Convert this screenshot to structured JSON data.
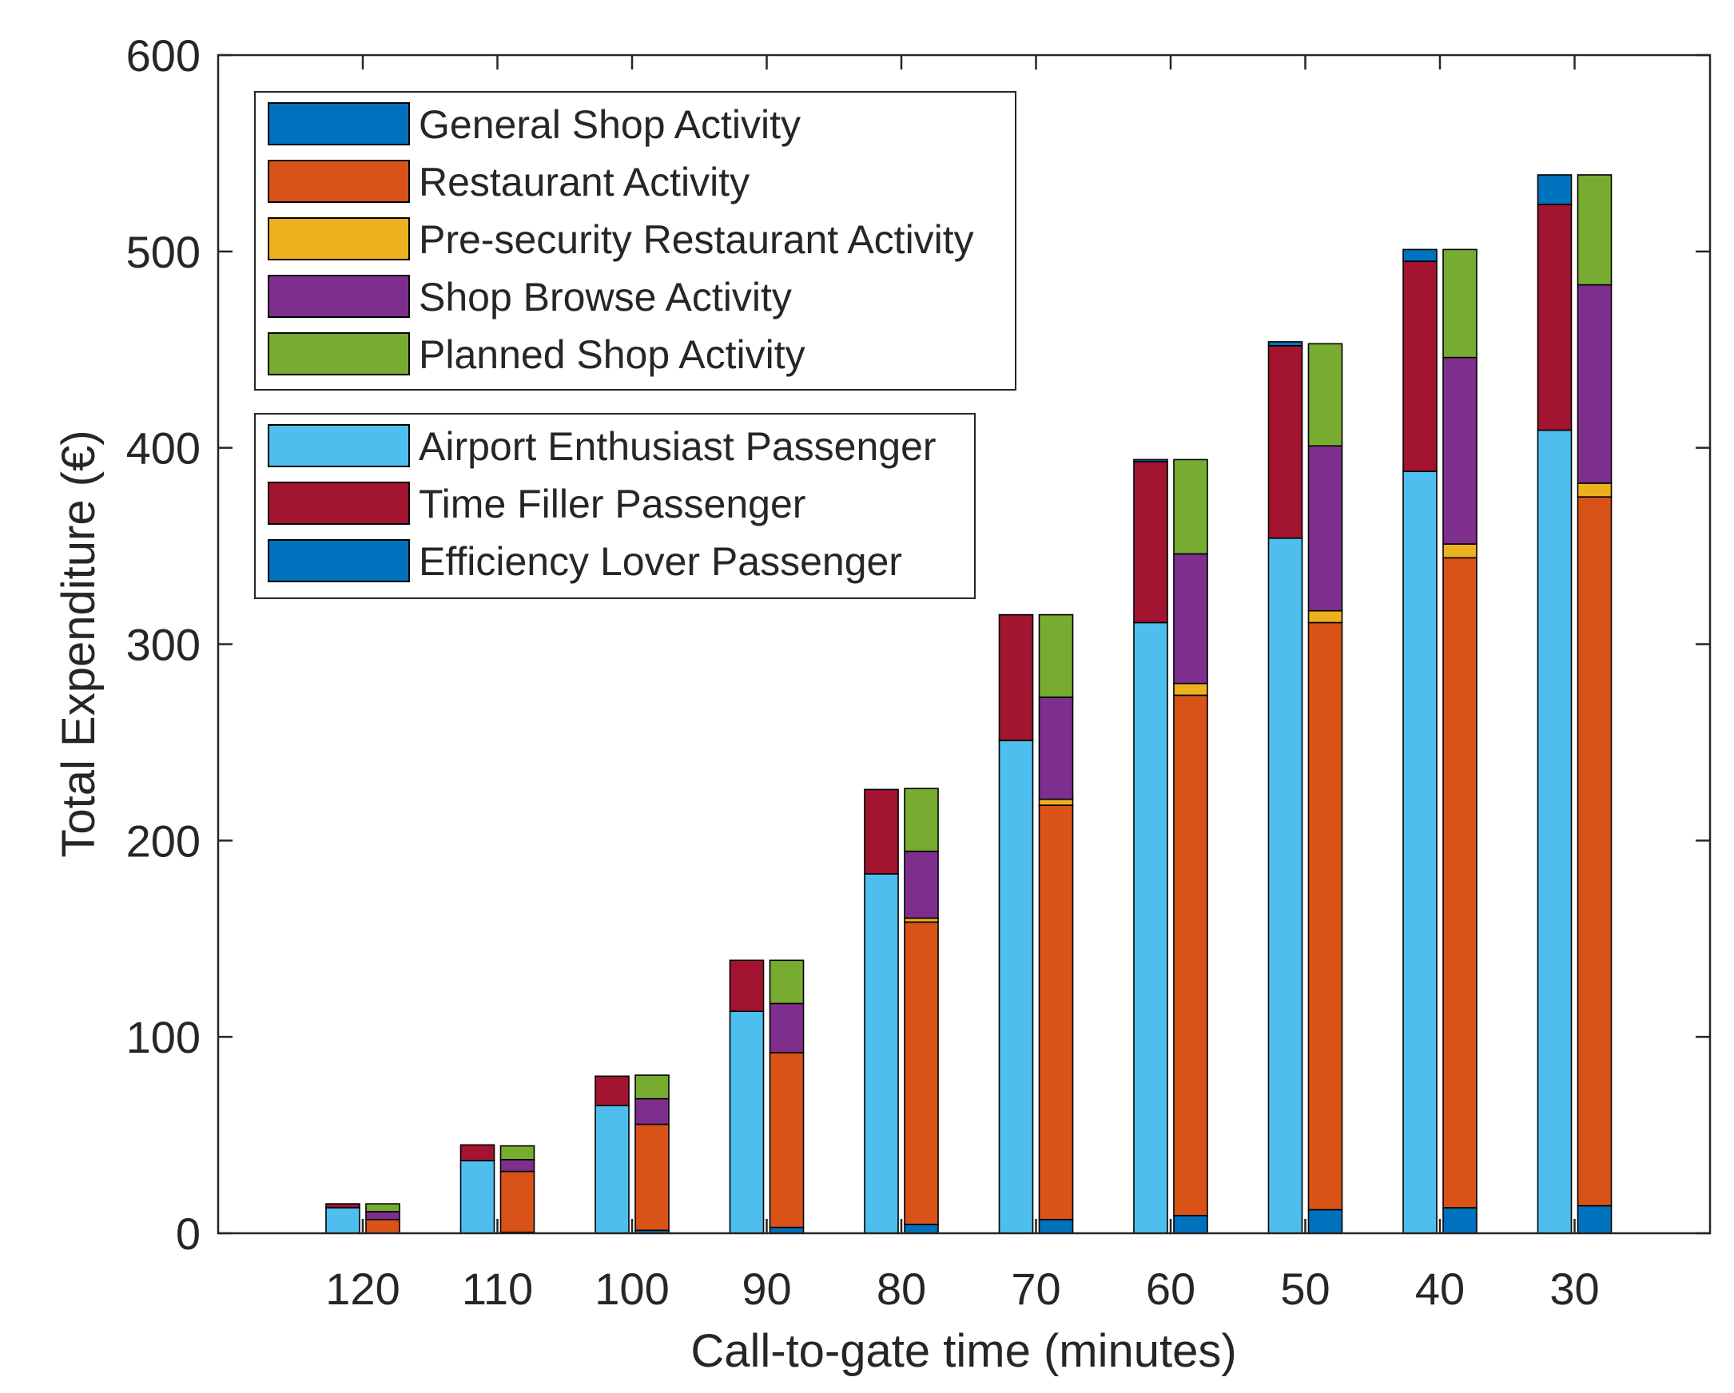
{
  "chart_data": {
    "type": "bar",
    "stacked": true,
    "grouped": true,
    "categories": [
      "120",
      "110",
      "100",
      "90",
      "80",
      "70",
      "60",
      "50",
      "40",
      "30"
    ],
    "xlabel": "Call-to-gate time (minutes)",
    "ylabel": "Total Expenditure (€)",
    "ylim": [
      0,
      600
    ],
    "yticks": [
      0,
      100,
      200,
      300,
      400,
      500,
      600
    ],
    "grid": false,
    "groups": [
      {
        "group": "passenger",
        "legend_position": "lower box, top-left",
        "series": [
          {
            "name": "Efficiency Lover Passenger",
            "color": "#0072BD",
            "values": [
              0,
              0,
              0,
              0,
              0,
              0,
              0,
              0,
              0,
              0
            ]
          },
          {
            "name": "Airport Enthusiast Passenger",
            "color": "#4DBEEE",
            "values": [
              13,
              37,
              65,
              113,
              183,
              251,
              311,
              354,
              388,
              409
            ]
          },
          {
            "name": "Time Filler Passenger",
            "color": "#A2142F",
            "values": [
              2,
              8,
              15,
              26,
              43,
              64,
              82,
              98,
              107,
              115
            ]
          },
          {
            "name": "General Shop Activity",
            "color": "#0072BD",
            "values": [
              0,
              0,
              0,
              0,
              0,
              0,
              1,
              2,
              6,
              15
            ]
          }
        ]
      },
      {
        "group": "activity",
        "legend_position": "upper box, top-left",
        "series": [
          {
            "name": "Efficiency Lover Passenger",
            "color": "#0072BD",
            "values": [
              0,
              0.5,
              1.5,
              3,
              4.5,
              7,
              9,
              12,
              13,
              14
            ]
          },
          {
            "name": "Restaurant Activity",
            "color": "#D95319",
            "values": [
              7,
              31,
              54,
              89,
              154,
              211,
              265,
              299,
              331,
              361
            ]
          },
          {
            "name": "Pre-security Restaurant Activity",
            "color": "#EDB120",
            "values": [
              0,
              0,
              0,
              0,
              2,
              3,
              6,
              6,
              7,
              7
            ]
          },
          {
            "name": "Shop Browse Activity",
            "color": "#7E2F8E",
            "values": [
              4,
              6,
              13,
              25,
              34,
              52,
              66,
              84,
              95,
              101
            ]
          },
          {
            "name": "Planned Shop Activity",
            "color": "#77AC30",
            "values": [
              4,
              7,
              12,
              22,
              32,
              42,
              48,
              52,
              55,
              56
            ]
          }
        ]
      }
    ],
    "legends": [
      {
        "position": "top-left",
        "entries": [
          {
            "label": "General Shop Activity",
            "color": "#0072BD"
          },
          {
            "label": "Restaurant Activity",
            "color": "#D95319"
          },
          {
            "label": "Pre-security Restaurant Activity",
            "color": "#EDB120"
          },
          {
            "label": "Shop Browse Activity",
            "color": "#7E2F8E"
          },
          {
            "label": "Planned Shop Activity",
            "color": "#77AC30"
          }
        ]
      },
      {
        "position": "top-left, below first legend",
        "entries": [
          {
            "label": "Airport Enthusiast Passenger",
            "color": "#4DBEEE"
          },
          {
            "label": "Time Filler Passenger",
            "color": "#A2142F"
          },
          {
            "label": "Efficiency Lover Passenger",
            "color": "#0072BD"
          }
        ]
      }
    ]
  }
}
